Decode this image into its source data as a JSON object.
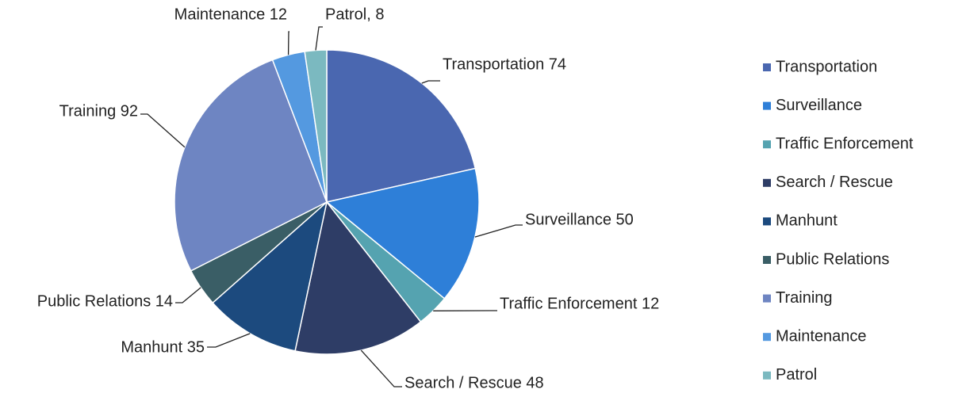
{
  "chart_data": {
    "type": "pie",
    "categories": [
      "Transportation",
      "Surveillance",
      "Traffic Enforcement",
      "Search / Rescue",
      "Manhunt",
      "Public Relations",
      "Training",
      "Maintenance",
      "Patrol"
    ],
    "values": [
      74,
      50,
      12,
      48,
      35,
      14,
      92,
      12,
      8
    ],
    "value_labels": [
      "Transportation 74",
      "Surveillance 50",
      "Traffic Enforcement 12",
      "Search / Rescue 48",
      "Manhunt 35",
      "Public Relations 14",
      "Training 92",
      "Maintenance 12",
      "Patrol, 8"
    ],
    "colors": [
      "#4a67b0",
      "#2e7fd8",
      "#55a3b0",
      "#2e3d66",
      "#1c4a7e",
      "#3a5e66",
      "#6e85c2",
      "#5499e0",
      "#7bb9c0"
    ],
    "legend": "right"
  }
}
